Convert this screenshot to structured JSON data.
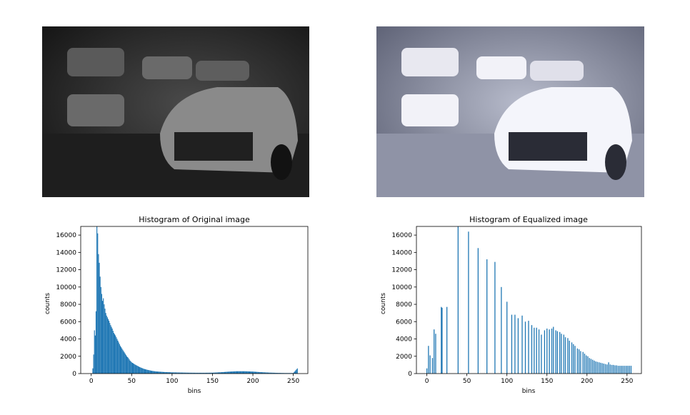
{
  "images": [
    {
      "name": "original-grayscale-photo",
      "description_visible": ""
    },
    {
      "name": "equalized-photo",
      "description_visible": ""
    }
  ],
  "colors": {
    "bar": "#1f77b4",
    "axis": "#000000"
  },
  "chart_data": [
    {
      "type": "bar",
      "title": "Histogram of Original image",
      "xlabel": "bins",
      "ylabel": "counts",
      "xlim": [
        -13,
        268
      ],
      "ylim": [
        0,
        17000
      ],
      "xticks": [
        0,
        50,
        100,
        150,
        200,
        250
      ],
      "yticks": [
        0,
        2000,
        4000,
        6000,
        8000,
        10000,
        12000,
        14000,
        16000
      ],
      "grid": false,
      "histogram_profile": [
        [
          2,
          600
        ],
        [
          3,
          2200
        ],
        [
          4,
          5000
        ],
        [
          5,
          4400
        ],
        [
          6,
          7200
        ],
        [
          7,
          17000
        ],
        [
          8,
          16200
        ],
        [
          9,
          13800
        ],
        [
          10,
          12800
        ],
        [
          11,
          11200
        ],
        [
          12,
          10000
        ],
        [
          13,
          9200
        ],
        [
          14,
          8400
        ],
        [
          15,
          8700
        ],
        [
          16,
          8000
        ],
        [
          17,
          7500
        ],
        [
          18,
          7000
        ],
        [
          19,
          6700
        ],
        [
          20,
          6500
        ],
        [
          22,
          6100
        ],
        [
          24,
          5600
        ],
        [
          26,
          5200
        ],
        [
          28,
          4700
        ],
        [
          30,
          4400
        ],
        [
          32,
          4000
        ],
        [
          34,
          3600
        ],
        [
          36,
          3200
        ],
        [
          38,
          2900
        ],
        [
          40,
          2600
        ],
        [
          42,
          2300
        ],
        [
          44,
          2000
        ],
        [
          46,
          1800
        ],
        [
          48,
          1500
        ],
        [
          50,
          1300
        ],
        [
          55,
          1000
        ],
        [
          60,
          750
        ],
        [
          65,
          550
        ],
        [
          70,
          420
        ],
        [
          75,
          320
        ],
        [
          80,
          250
        ],
        [
          90,
          180
        ],
        [
          100,
          140
        ],
        [
          110,
          120
        ],
        [
          120,
          100
        ],
        [
          130,
          90
        ],
        [
          140,
          90
        ],
        [
          150,
          100
        ],
        [
          160,
          150
        ],
        [
          170,
          220
        ],
        [
          180,
          270
        ],
        [
          190,
          270
        ],
        [
          200,
          230
        ],
        [
          210,
          160
        ],
        [
          220,
          110
        ],
        [
          230,
          80
        ],
        [
          240,
          60
        ],
        [
          250,
          60
        ],
        [
          255,
          600
        ]
      ]
    },
    {
      "type": "bar",
      "title": "Histogram of Equalized image",
      "xlabel": "bins",
      "ylabel": "counts",
      "xlim": [
        -13,
        268
      ],
      "ylim": [
        0,
        17000
      ],
      "xticks": [
        0,
        50,
        100,
        150,
        200,
        250
      ],
      "yticks": [
        0,
        2000,
        4000,
        6000,
        8000,
        10000,
        12000,
        14000,
        16000
      ],
      "grid": false,
      "bins": [
        [
          0,
          600
        ],
        [
          2,
          3200
        ],
        [
          4,
          2100
        ],
        [
          7,
          1800
        ],
        [
          9,
          5100
        ],
        [
          11,
          4600
        ],
        [
          18,
          7700
        ],
        [
          19,
          7600
        ],
        [
          25,
          7700
        ],
        [
          39,
          17000
        ],
        [
          52,
          16400
        ],
        [
          64,
          14500
        ],
        [
          75,
          13200
        ],
        [
          85,
          12900
        ],
        [
          93,
          10000
        ],
        [
          100,
          8300
        ],
        [
          106,
          6800
        ],
        [
          110,
          6800
        ],
        [
          114,
          6400
        ],
        [
          119,
          6700
        ],
        [
          123,
          6000
        ],
        [
          127,
          6100
        ],
        [
          131,
          5600
        ],
        [
          134,
          5300
        ],
        [
          137,
          5300
        ],
        [
          140,
          5100
        ],
        [
          143,
          4500
        ],
        [
          147,
          5000
        ],
        [
          150,
          5200
        ],
        [
          153,
          5100
        ],
        [
          156,
          5200
        ],
        [
          158,
          5400
        ],
        [
          161,
          5000
        ],
        [
          163,
          4900
        ],
        [
          166,
          4800
        ],
        [
          168,
          4600
        ],
        [
          171,
          4500
        ],
        [
          173,
          4200
        ],
        [
          176,
          4100
        ],
        [
          178,
          3800
        ],
        [
          181,
          3600
        ],
        [
          183,
          3400
        ],
        [
          185,
          3200
        ],
        [
          188,
          2900
        ],
        [
          190,
          2800
        ],
        [
          192,
          2600
        ],
        [
          195,
          2500
        ],
        [
          197,
          2300
        ],
        [
          199,
          2100
        ],
        [
          201,
          2000
        ],
        [
          203,
          1800
        ],
        [
          205,
          1700
        ],
        [
          207,
          1600
        ],
        [
          209,
          1500
        ],
        [
          211,
          1400
        ],
        [
          213,
          1350
        ],
        [
          215,
          1300
        ],
        [
          217,
          1250
        ],
        [
          219,
          1200
        ],
        [
          221,
          1150
        ],
        [
          223,
          1100
        ],
        [
          225,
          1050
        ],
        [
          227,
          1300
        ],
        [
          229,
          1050
        ],
        [
          231,
          1000
        ],
        [
          233,
          1000
        ],
        [
          235,
          950
        ],
        [
          237,
          950
        ],
        [
          239,
          900
        ],
        [
          241,
          900
        ],
        [
          243,
          900
        ],
        [
          245,
          900
        ],
        [
          247,
          900
        ],
        [
          249,
          900
        ],
        [
          251,
          900
        ],
        [
          253,
          900
        ],
        [
          255,
          900
        ]
      ]
    }
  ]
}
